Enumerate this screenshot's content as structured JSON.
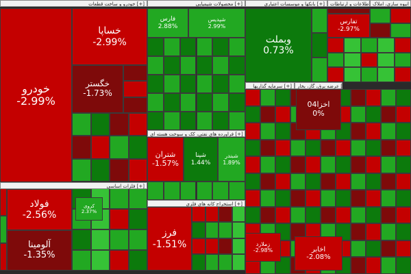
{
  "sectors": [
    {
      "title": "خودرو و ساخت قطعات [+]"
    },
    {
      "title": "محصولات شیمیایی [+]"
    },
    {
      "title": "بانکها و موسسات اعتباری [+]"
    },
    {
      "title": "اطلاعات و ارتباطات [+]"
    },
    {
      "title": "انبوه سازی، املاک [+]"
    },
    {
      "title": "فلزات اساسی [+]"
    },
    {
      "title": "فراورده های نفتی، کک و سوخت هسته ای [+]"
    },
    {
      "title": "استخراج کانه های فلزی [+]"
    },
    {
      "title": "سرمایه گذاریها [+]"
    },
    {
      "title": "عرضه برق، گاز، بخار [+]"
    }
  ],
  "tiles": [
    {
      "name": "خودرو",
      "change": "-2.99%"
    },
    {
      "name": "خساپا",
      "change": "-2.99%"
    },
    {
      "name": "خگستر",
      "change": "-1.73%"
    },
    {
      "name": "فولاد",
      "change": "-2.56%"
    },
    {
      "name": "آلومینا",
      "change": "-1.35%"
    },
    {
      "name": "فارس",
      "change": "2.88%"
    },
    {
      "name": "شپدیس",
      "change": "2.99%"
    },
    {
      "name": "وبملت",
      "change": "0.73%"
    },
    {
      "name": "تفارس",
      "change": "-2.97%"
    },
    {
      "name": "شتران",
      "change": "-1.57%"
    },
    {
      "name": "شپنا",
      "change": "1.44%"
    },
    {
      "name": "شبندر",
      "change": "1.89%"
    },
    {
      "name": "فرز",
      "change": "-1.51%"
    },
    {
      "name": "اخزا04",
      "change": "0%"
    },
    {
      "name": "اخابر",
      "change": "-2.08%"
    },
    {
      "name": "زملارد",
      "change": "-2.98%"
    },
    {
      "name": "کروی",
      "change": "2.37%"
    }
  ]
}
